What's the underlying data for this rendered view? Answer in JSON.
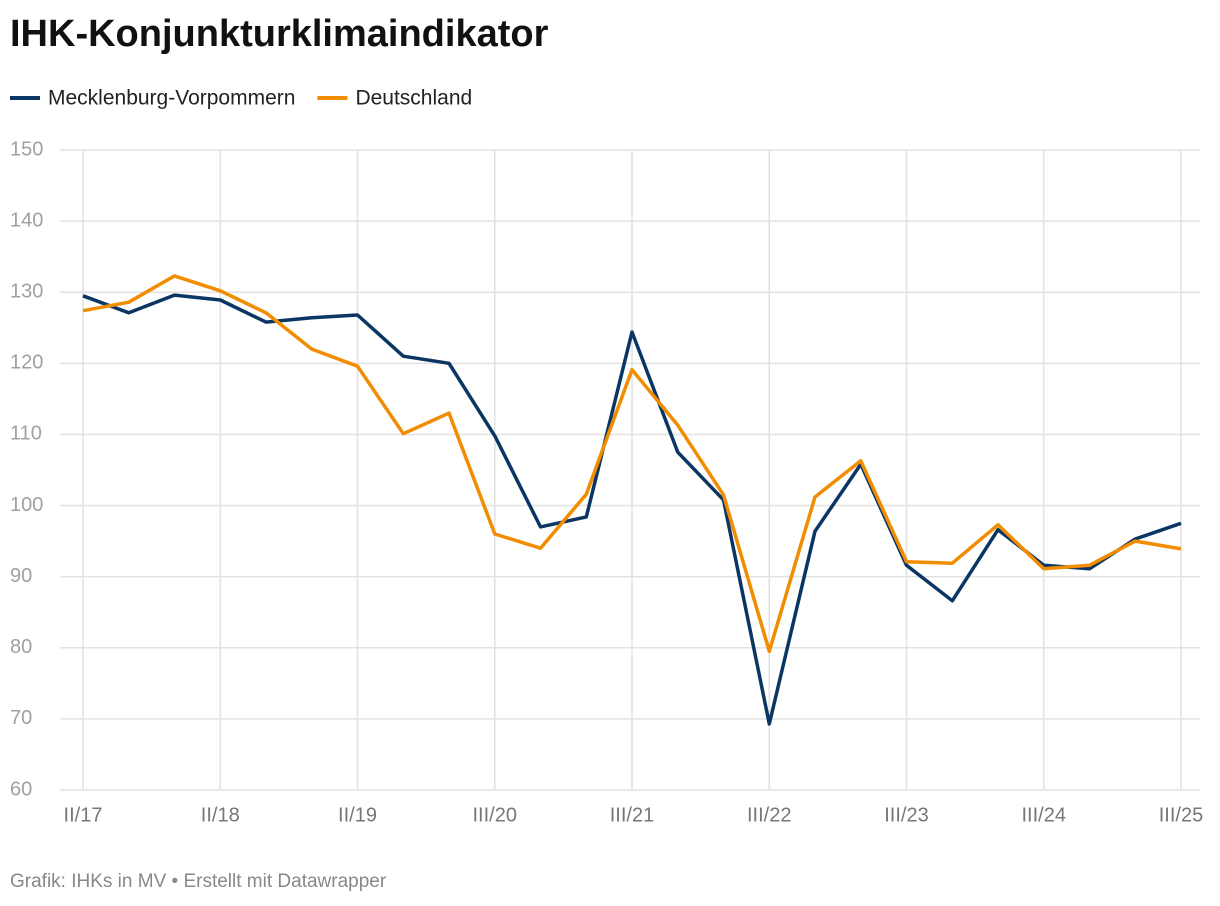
{
  "chart_data": {
    "type": "line",
    "title": "IHK-Konjunkturklimaindikator",
    "source": "Grafik: IHKs in MV • Erstellt mit Datawrapper",
    "categories": [
      "II/17",
      null,
      null,
      "II/18",
      null,
      null,
      "II/19",
      null,
      null,
      "III/20",
      null,
      null,
      "III/21",
      null,
      null,
      "III/22",
      null,
      null,
      "III/23",
      null,
      null,
      "III/24",
      null,
      null,
      "III/25"
    ],
    "series": [
      {
        "name": "Mecklenburg-Vorpommern",
        "color": "#0b3664",
        "values": [
          129.5,
          127.1,
          129.6,
          128.9,
          125.8,
          126.4,
          126.8,
          121.0,
          120.0,
          109.8,
          97.0,
          98.4,
          124.4,
          107.5,
          100.8,
          69.3,
          96.4,
          105.8,
          91.6,
          86.6,
          96.6,
          91.6,
          91.1,
          95.3,
          97.5
        ]
      },
      {
        "name": "Deutschland",
        "color": "#f28c00",
        "values": [
          127.4,
          128.6,
          132.3,
          130.2,
          127.1,
          122.0,
          119.6,
          110.1,
          113.0,
          96.0,
          94.0,
          101.6,
          119.1,
          111.3,
          101.5,
          79.5,
          101.2,
          106.3,
          92.1,
          91.9,
          97.3,
          91.1,
          91.6,
          95.0,
          93.9
        ]
      }
    ],
    "ylim": [
      60,
      150
    ],
    "yticks": [
      60,
      70,
      80,
      90,
      100,
      110,
      120,
      130,
      140,
      150
    ],
    "grid": true
  }
}
